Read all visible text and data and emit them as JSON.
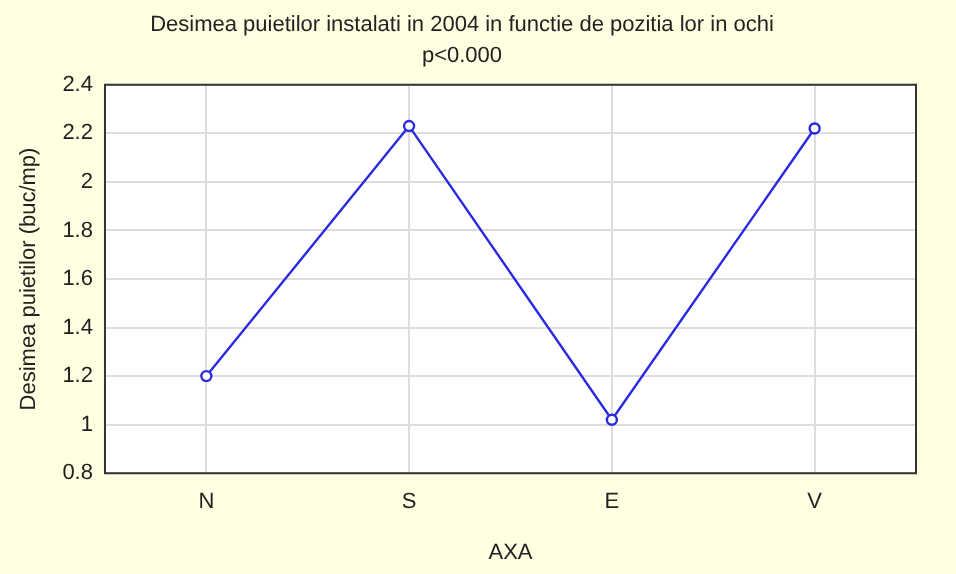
{
  "chart_data": {
    "type": "line",
    "title": "Desimea puietilor instalati in 2004 in functie de pozitia lor in ochi",
    "subtitle": "p<0.000",
    "xlabel": "AXA",
    "ylabel": "Desimea puietilor (buc/mp)",
    "categories": [
      "N",
      "S",
      "E",
      "V"
    ],
    "series": [
      {
        "color": "#2a2ae0",
        "values": [
          1.2,
          2.23,
          1.02,
          2.22
        ]
      }
    ],
    "ylim": [
      0.8,
      2.4
    ],
    "yticks": [
      0.8,
      1,
      1.2,
      1.4,
      1.6,
      1.8,
      2,
      2.2,
      2.4
    ],
    "grid": true,
    "legend": false,
    "marker": "circle",
    "line_style": "solid"
  }
}
